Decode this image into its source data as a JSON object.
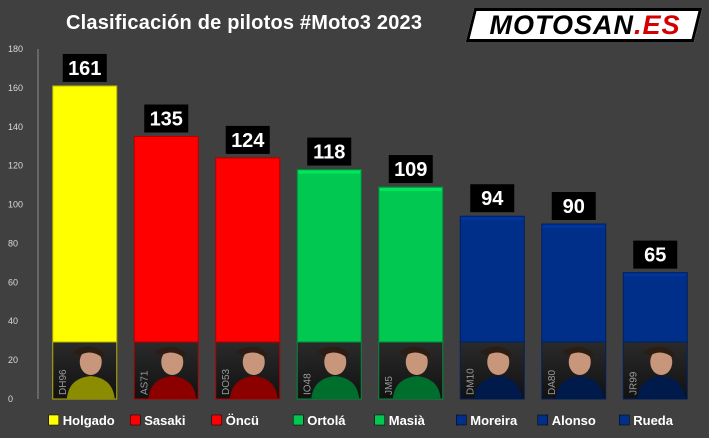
{
  "chart_data": {
    "type": "bar",
    "title": "Clasificación de pilotos #Moto3 2023",
    "categories": [
      "Holgado",
      "Sasaki",
      "Öncü",
      "Ortolá",
      "Masià",
      "Moreira",
      "Alonso",
      "Rueda"
    ],
    "values": [
      161,
      135,
      124,
      118,
      109,
      94,
      90,
      65
    ],
    "rider_numbers": [
      "DH96",
      "AS71",
      "DO53",
      "IO48",
      "JM5",
      "DM10",
      "DA80",
      "JR99"
    ],
    "colors": [
      "#ffff00",
      "#ff0000",
      "#ff0000",
      "#00c850",
      "#00c850",
      "#002f8a",
      "#002f8a",
      "#002f8a"
    ],
    "ylim": [
      0,
      180
    ],
    "yticks": [
      0,
      20,
      40,
      60,
      80,
      100,
      120,
      140,
      160,
      180
    ],
    "grid": false,
    "legend_position": "bottom"
  },
  "logo": {
    "main": "MOTOSAN",
    "suffix": ".ES"
  },
  "background_color": "#404040"
}
